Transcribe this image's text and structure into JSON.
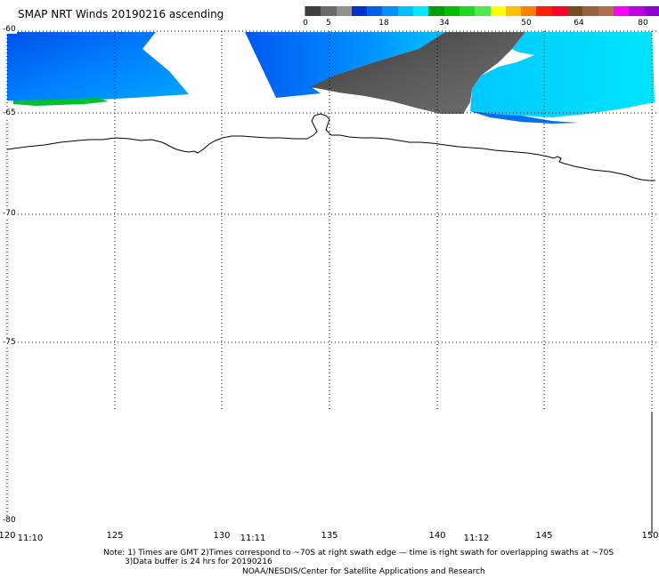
{
  "title": "SMAP NRT Winds 20190216 ascending",
  "colorbar": {
    "segments": [
      {
        "color": "#404040"
      },
      {
        "color": "#6a6a6a"
      },
      {
        "color": "#909090"
      },
      {
        "color": "#0030d0"
      },
      {
        "color": "#0060f0"
      },
      {
        "color": "#0090ff"
      },
      {
        "color": "#00c0ff"
      },
      {
        "color": "#00e8ff"
      },
      {
        "color": "#00a000"
      },
      {
        "color": "#00c000"
      },
      {
        "color": "#20d820"
      },
      {
        "color": "#50e850"
      },
      {
        "color": "#ffff00"
      },
      {
        "color": "#ffc000"
      },
      {
        "color": "#ff8000"
      },
      {
        "color": "#ff2000"
      },
      {
        "color": "#ff0030"
      },
      {
        "color": "#7a4a20"
      },
      {
        "color": "#9a6040"
      },
      {
        "color": "#b07050"
      },
      {
        "color": "#ff00ff"
      },
      {
        "color": "#c000e0"
      },
      {
        "color": "#9000d0"
      }
    ],
    "labels": [
      "0",
      "5",
      "18",
      "34",
      "50",
      "64",
      "80"
    ]
  },
  "y_labels": [
    "-60",
    "-65",
    "-70",
    "-75",
    "-80"
  ],
  "x_labels": [
    "120",
    "125",
    "130",
    "135",
    "140",
    "145",
    "150"
  ],
  "time_labels": [
    "11:10",
    "11:11",
    "11:12"
  ],
  "note": {
    "line1": "Note: 1) Times are GMT 2)Times correspond to ~70S at right swath edge — time is right swath for overlapping swaths at ~70S",
    "line2": "3)Data buffer is 24 hrs for 20190216",
    "line3": "NOAA/NESDIS/Center for Satellite Applications and Research"
  },
  "colors": {
    "wind_low": "#0070f0",
    "wind_mid": "#00a8ff",
    "wind_cyan": "#00d8ff",
    "wind_green": "#00c030",
    "no_wind_gray": "#505050",
    "coastline": "#000000"
  }
}
